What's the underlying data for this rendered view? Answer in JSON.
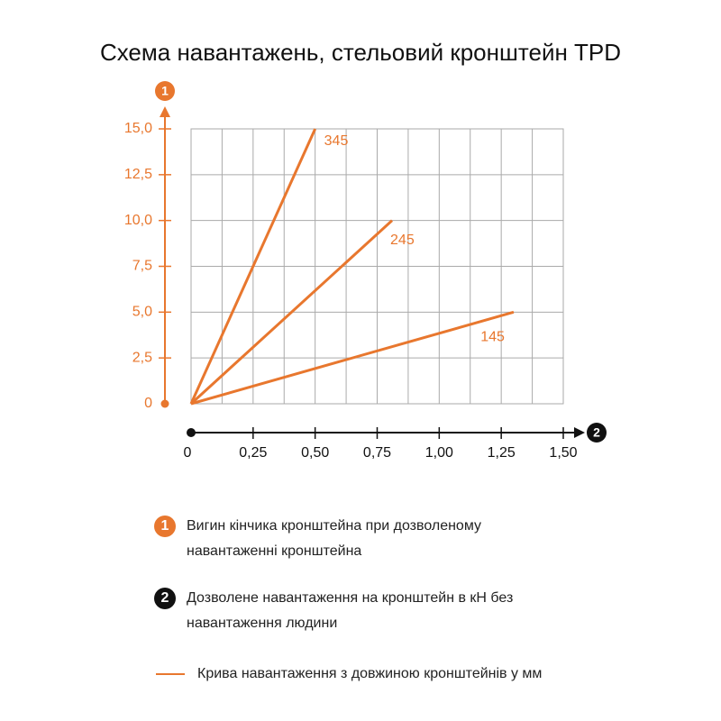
{
  "chart_data": {
    "type": "line",
    "title": "Схема навантажень, стельовий кронштейн TPD",
    "y_axis_marker": "1",
    "x_axis_marker": "2",
    "series": [
      {
        "name": "345",
        "color": "#e8772e",
        "x": [
          0,
          0.5
        ],
        "values": [
          0,
          15
        ]
      },
      {
        "name": "245",
        "color": "#e8772e",
        "x": [
          0,
          0.81
        ],
        "values": [
          0,
          10
        ]
      },
      {
        "name": "145",
        "color": "#e8772e",
        "x": [
          0,
          1.3
        ],
        "values": [
          0,
          5
        ]
      }
    ],
    "xlim": [
      0,
      1.5
    ],
    "xticks": [
      0,
      {
        "value": 0.25,
        "label": "0,25"
      },
      {
        "value": 0.5,
        "label": "0,50"
      },
      {
        "value": 0.75,
        "label": "0,75"
      },
      {
        "value": 1,
        "label": "1,00"
      },
      {
        "value": 1.25,
        "label": "1,25"
      },
      {
        "value": 1.5,
        "label": "1,50"
      }
    ],
    "ylim": [
      0,
      15
    ],
    "yticks": [
      0,
      {
        "value": 2.5,
        "label": "2,5"
      },
      {
        "value": 5,
        "label": "5,0"
      },
      {
        "value": 7.5,
        "label": "7,5"
      },
      {
        "value": 10,
        "label": "10,0"
      },
      {
        "value": 12.5,
        "label": "12,5"
      },
      {
        "value": 15,
        "label": "15,0"
      }
    ],
    "grid": true
  },
  "legend": [
    {
      "marker": "1",
      "text": "Вигин кінчика кронштейна при дозволеному навантаженні кронштейна"
    },
    {
      "marker": "2",
      "text": "Дозволене навантаження на кронштейн в кН без навантаження людини"
    },
    {
      "text": "Крива навантаження з довжиною кронштейнів у мм"
    }
  ]
}
